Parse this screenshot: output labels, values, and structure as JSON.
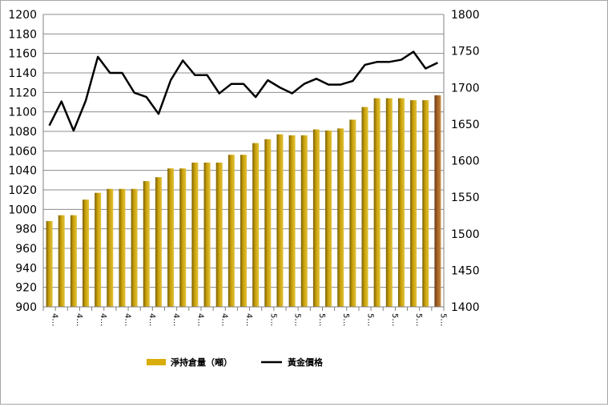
{
  "chart_data": {
    "type": "bar",
    "categories": [
      "4…",
      "4…",
      "4…",
      "4…",
      "4…",
      "4…",
      "4…",
      "4…",
      "4…",
      "4…",
      "4…",
      "4…",
      "4…",
      "4…",
      "4…",
      "4…",
      "4…",
      "5…",
      "5…",
      "5…",
      "5…",
      "5…",
      "5…",
      "5…",
      "5…",
      "5…",
      "5…",
      "5…",
      "5…",
      "5…",
      "5…",
      "5…",
      "5…"
    ],
    "series": [
      {
        "name": "淨持倉量（噸）",
        "type": "bar",
        "axis": "left",
        "color": "#c9a10a",
        "last_color": "#a6652a",
        "values": [
          988,
          994,
          994,
          1010,
          1017,
          1021,
          1021,
          1021,
          1029,
          1033,
          1042,
          1042,
          1048,
          1048,
          1048,
          1056,
          1056,
          1068,
          1072,
          1077,
          1076,
          1076,
          1082,
          1081,
          1083,
          1092,
          1105,
          1114,
          1114,
          1114,
          1112,
          1112,
          1117
        ]
      },
      {
        "name": "黃金價格",
        "type": "line",
        "axis": "right",
        "color": "#000000",
        "values": [
          1648,
          1681,
          1641,
          1682,
          1742,
          1720,
          1720,
          1693,
          1687,
          1664,
          1710,
          1737,
          1717,
          1717,
          1692,
          1705,
          1705,
          1687,
          1710,
          1700,
          1692,
          1705,
          1712,
          1704,
          1704,
          1709,
          1731,
          1735,
          1735,
          1738,
          1749,
          1726,
          1734
        ]
      }
    ],
    "y_left": {
      "min": 900,
      "max": 1200,
      "step": 20
    },
    "y_right": {
      "min": 1400,
      "max": 1800,
      "step": 50
    },
    "y_left_ticks": [
      "900",
      "920",
      "940",
      "960",
      "980",
      "1000",
      "1020",
      "1040",
      "1060",
      "1080",
      "1100",
      "1120",
      "1140",
      "1160",
      "1180",
      "1200"
    ],
    "y_right_ticks": [
      "1400",
      "1450",
      "1500",
      "1550",
      "1600",
      "1650",
      "1700",
      "1750",
      "1800"
    ],
    "grid": true,
    "legend_position": "bottom"
  }
}
